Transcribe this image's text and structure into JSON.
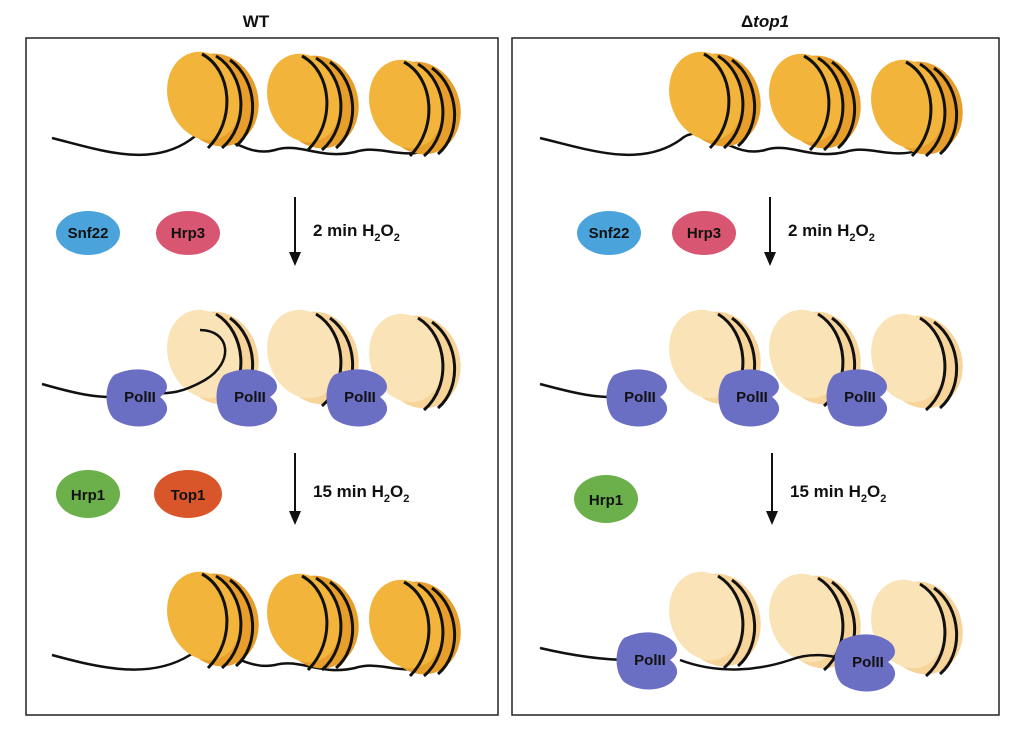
{
  "panels": [
    {
      "title": "WT",
      "factors_step1": [
        {
          "label": "Snf22",
          "color": "#4aa3db"
        },
        {
          "label": "Hrp3",
          "color": "#d95673"
        }
      ],
      "factors_step2": [
        {
          "label": "Hrp1",
          "color": "#6bb04a"
        },
        {
          "label": "Top1",
          "color": "#d9562a"
        }
      ],
      "step1": {
        "prefix": "2 min H",
        "sub1": "2",
        "mid": "O",
        "sub2": "2"
      },
      "step2": {
        "prefix": "15 min H",
        "sub1": "2",
        "mid": "O",
        "sub2": "2"
      },
      "polymerase_label": "PolII"
    },
    {
      "title_symbol": "Δ",
      "title_gene": "top1",
      "factors_step1": [
        {
          "label": "Snf22",
          "color": "#4aa3db"
        },
        {
          "label": "Hrp3",
          "color": "#d95673"
        }
      ],
      "factors_step2": [
        {
          "label": "Hrp1",
          "color": "#6bb04a"
        }
      ],
      "step1": {
        "prefix": "2 min H",
        "sub1": "2",
        "mid": "O",
        "sub2": "2"
      },
      "step2": {
        "prefix": "15 min H",
        "sub1": "2",
        "mid": "O",
        "sub2": "2"
      },
      "polymerase_label": "PolII"
    }
  ],
  "colors": {
    "nucleosome": "#f3b43c",
    "nucleosome_side": "#e89e2a",
    "nucleosome_open": "#fbe3b8",
    "nucleosome_open_side": "#f7d49a",
    "polymerase": "#6b6fc4",
    "dna": "#111111"
  }
}
